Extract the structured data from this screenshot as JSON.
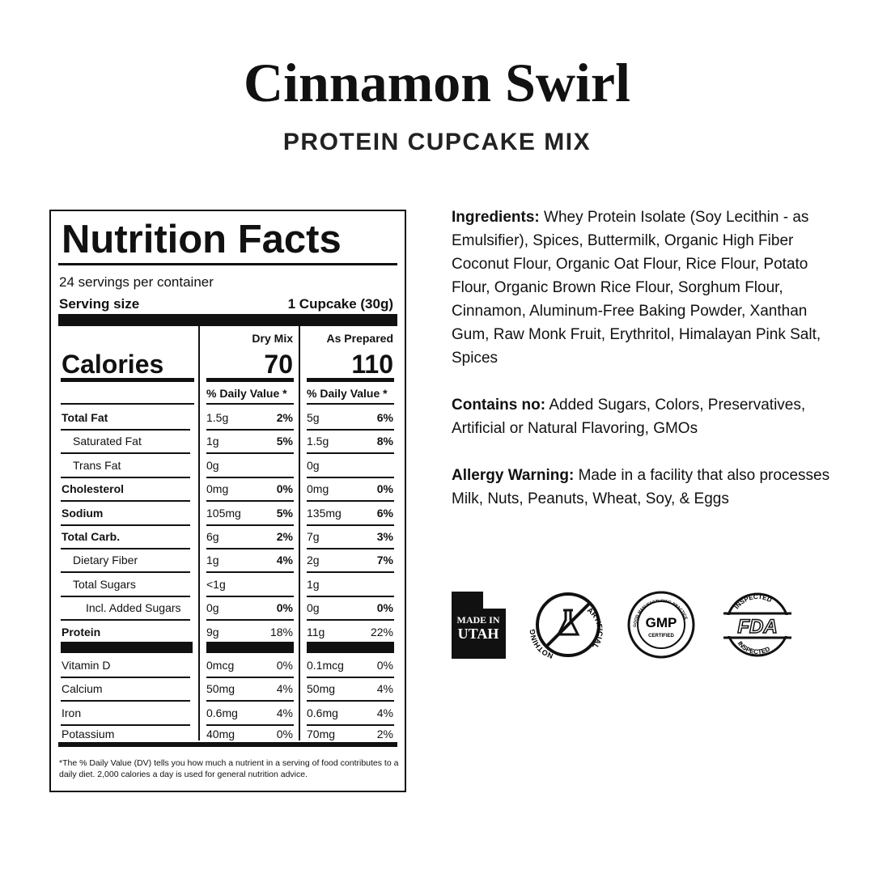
{
  "header": {
    "title": "Cinnamon Swirl",
    "subtitle": "PROTEIN CUPCAKE MIX"
  },
  "nutrition": {
    "title": "Nutrition Facts",
    "servings": "24 servings per container",
    "serving_size_label": "Serving size",
    "serving_size": "1 Cupcake (30g)",
    "columns": [
      "Dry Mix",
      "As Prepared"
    ],
    "calories_label": "Calories",
    "calories": [
      70,
      110
    ],
    "dv_header": "% Daily Value *",
    "rows": [
      {
        "name": "Total Fat",
        "dry": [
          "1.5g",
          "2%"
        ],
        "prepared": [
          "5g",
          "6%"
        ]
      },
      {
        "name": "Saturated Fat",
        "dry": [
          "1g",
          "5%"
        ],
        "prepared": [
          "1.5g",
          "8%"
        ]
      },
      {
        "name": "Trans Fat",
        "dry": [
          "0g"
        ],
        "prepared": [
          "0g"
        ]
      },
      {
        "name": "Cholesterol",
        "dry": [
          "0mg",
          "0%"
        ],
        "prepared": [
          "0mg",
          "0%"
        ]
      },
      {
        "name": "Sodium",
        "dry": [
          "105mg",
          "5%"
        ],
        "prepared": [
          "135mg",
          "6%"
        ]
      },
      {
        "name": "Total Carb.",
        "dry": [
          "6g",
          "2%"
        ],
        "prepared": [
          "7g",
          "3%"
        ]
      },
      {
        "name": "Dietary Fiber",
        "dry": [
          "1g",
          "4%"
        ],
        "prepared": [
          "2g",
          "7%"
        ]
      },
      {
        "name": "Total Sugars",
        "dry": [
          "<1g"
        ],
        "prepared": [
          "1g"
        ]
      },
      {
        "name": "Incl. Added Sugars",
        "dry": [
          "0g",
          "0%"
        ],
        "prepared": [
          "0g",
          "0%"
        ]
      },
      {
        "name": "Protein",
        "dry": [
          "9g",
          "18%"
        ],
        "prepared": [
          "11g",
          "22%"
        ]
      }
    ],
    "vitamins": [
      {
        "name": "Vitamin D",
        "dry": [
          "0mcg",
          "0%"
        ],
        "prepared": [
          "0.1mcg",
          "0%"
        ]
      },
      {
        "name": "Calcium",
        "dry": [
          "50mg",
          "4%"
        ],
        "prepared": [
          "50mg",
          "4%"
        ]
      },
      {
        "name": "Iron",
        "dry": [
          "0.6mg",
          "4%"
        ],
        "prepared": [
          "0.6mg",
          "4%"
        ]
      },
      {
        "name": "Potassium",
        "dry": [
          "40mg",
          "0%"
        ],
        "prepared": [
          "70mg",
          "2%"
        ]
      }
    ],
    "footnote": "*The % Daily Value (DV) tells you how much a nutrient in a serving of food contributes to a daily diet. 2,000 calories a day is used for general nutrition advice."
  },
  "info": [
    {
      "label": "Ingredients:",
      "text": "Whey Protein Isolate (Soy Lecithin - as Emulsifier), Spices, Buttermilk, Organic High Fiber Coconut Flour, Organic Oat Flour, Rice Flour, Potato Flour, Organic Brown Rice Flour, Sorghum Flour, Cinnamon, Aluminum-Free Baking Powder, Xanthan Gum, Raw Monk Fruit, Erythritol, Himalayan Pink Salt, Spices"
    },
    {
      "label": "Contains no:",
      "text": "Added Sugars, Colors, Preservatives, Artificial or Natural Flavoring, GMOs"
    },
    {
      "label": "Allergy Warning:",
      "text": "Made in a facility that also processes Milk, Nuts, Peanuts, Wheat, Soy, & Eggs"
    }
  ],
  "badges": {
    "utah": [
      "MADE IN",
      "UTAH"
    ],
    "artificial": [
      "NOTHING",
      "ARTIFICIAL"
    ],
    "gmp": [
      "GMP",
      "CERTIFIED",
      "GOOD MANUFACTURING PRACTICE"
    ],
    "fda": [
      "FDA",
      "INSPECTED"
    ]
  }
}
